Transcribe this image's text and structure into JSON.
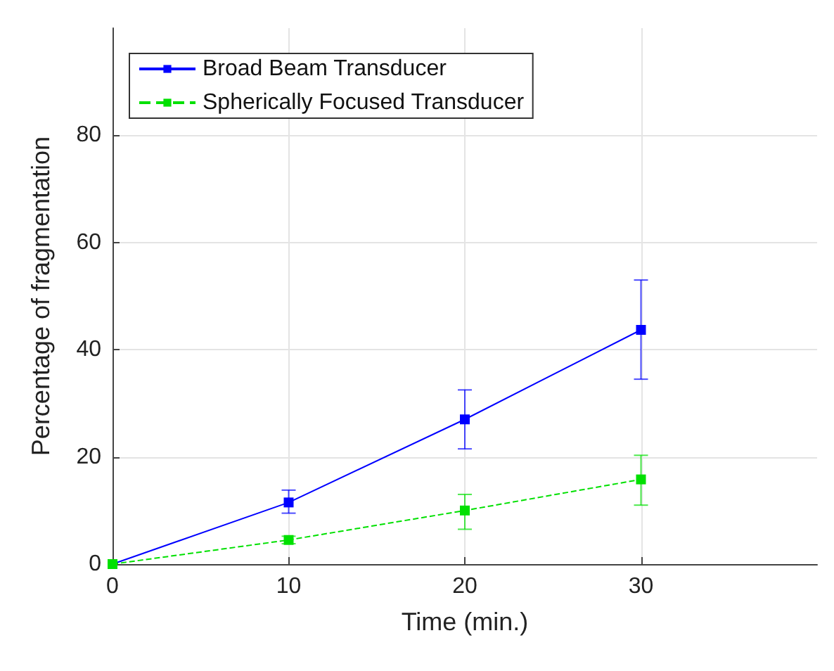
{
  "chart_data": {
    "type": "line",
    "xlabel": "Time (min.)",
    "ylabel": "Percentage of fragmentation",
    "x": [
      0,
      10,
      20,
      30
    ],
    "series": [
      {
        "name": "Broad Beam Transducer",
        "color": "#0000ff",
        "values": [
          0,
          11.5,
          27,
          43.7
        ],
        "errors": [
          null,
          [
            9.5,
            13.8
          ],
          [
            21.5,
            32.5
          ],
          [
            34.5,
            53
          ]
        ],
        "line_style": "solid"
      },
      {
        "name": "Spherically Focused Transducer",
        "color": "#00e000",
        "values": [
          0,
          4.5,
          10,
          15.8
        ],
        "errors": [
          null,
          [
            3.8,
            5.2
          ],
          [
            6.5,
            13
          ],
          [
            11,
            20.3
          ]
        ],
        "line_style": "dashed"
      }
    ],
    "xlim": [
      0,
      40
    ],
    "xticks": [
      0,
      10,
      20,
      30
    ],
    "ylim": [
      0,
      100
    ],
    "yticks": [
      0,
      20,
      40,
      60,
      80
    ],
    "grid": true,
    "legend": "top left",
    "marker": "square"
  }
}
